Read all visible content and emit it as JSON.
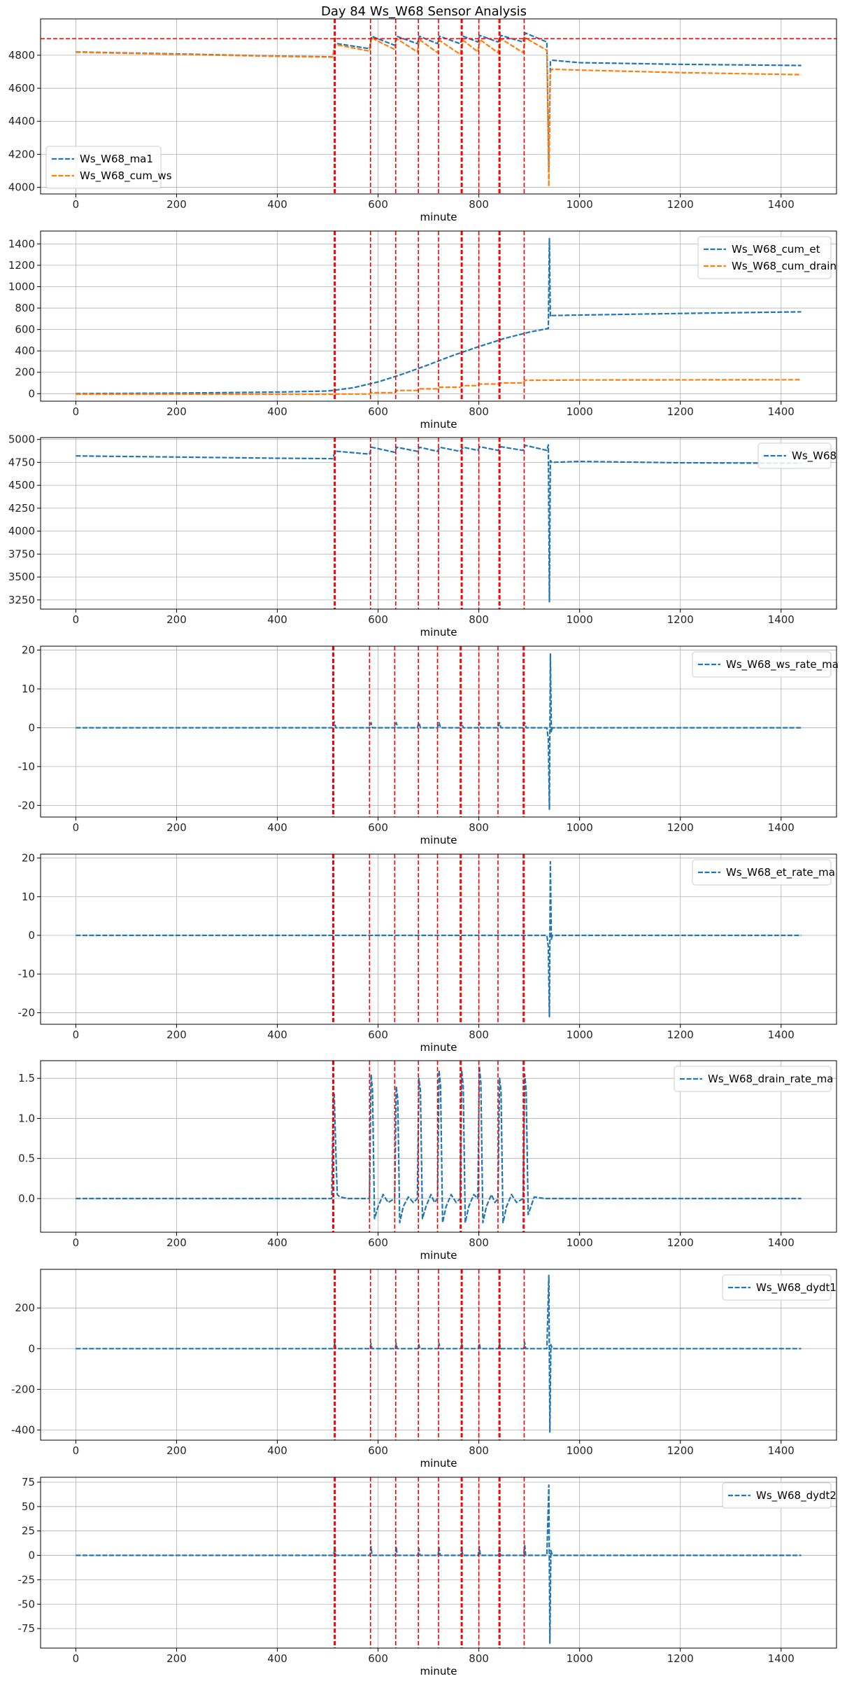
{
  "figure": {
    "title": "Day 84 Ws_W68 Sensor Analysis"
  },
  "colors": {
    "blue": "#1f77b4",
    "orange": "#ff7f0e",
    "event": "#ff0000",
    "grid": "#b0b0b0",
    "axis": "#000000"
  },
  "chart_data": [
    {
      "type": "line",
      "title": "",
      "xlabel": "minute",
      "ylabel": "",
      "xlim": [
        -70,
        1510
      ],
      "ylim": [
        3960,
        5020
      ],
      "xticks": [
        0,
        200,
        400,
        600,
        800,
        1000,
        1200,
        1400
      ],
      "yticks": [
        4000,
        4200,
        4400,
        4600,
        4800
      ],
      "ytick_labels": [
        "4000",
        "4200",
        "4400",
        "4600",
        "4800"
      ],
      "grid": true,
      "legend": "bottom-left",
      "event_lines": [
        513,
        515,
        585,
        635,
        680,
        720,
        765,
        767,
        800,
        840,
        842,
        890
      ],
      "hline": 4900,
      "series": [
        {
          "name": "Ws_W68_ma1",
          "color": "#1f77b4",
          "x": [
            0,
            200,
            400,
            510,
            515,
            583,
            587,
            633,
            637,
            678,
            682,
            718,
            722,
            763,
            769,
            798,
            802,
            838,
            844,
            888,
            892,
            935,
            939,
            942,
            945,
            1000,
            1200,
            1440
          ],
          "y": [
            4820,
            4808,
            4795,
            4790,
            4872,
            4840,
            4915,
            4860,
            4915,
            4870,
            4915,
            4870,
            4915,
            4870,
            4915,
            4880,
            4920,
            4880,
            4920,
            4880,
            4935,
            4880,
            4120,
            4760,
            4770,
            4755,
            4745,
            4738
          ]
        },
        {
          "name": "Ws_W68_cum_ws",
          "color": "#ff7f0e",
          "x": [
            0,
            200,
            400,
            510,
            515,
            583,
            587,
            633,
            637,
            678,
            682,
            718,
            722,
            763,
            769,
            798,
            802,
            838,
            844,
            888,
            892,
            935,
            939,
            942,
            945,
            1000,
            1200,
            1440
          ],
          "y": [
            4818,
            4805,
            4793,
            4788,
            4865,
            4825,
            4905,
            4835,
            4900,
            4820,
            4895,
            4815,
            4890,
            4805,
            4890,
            4820,
            4895,
            4815,
            4900,
            4815,
            4905,
            4830,
            4005,
            4700,
            4715,
            4710,
            4695,
            4682
          ]
        }
      ]
    },
    {
      "type": "line",
      "title": "",
      "xlabel": "minute",
      "ylabel": "",
      "xlim": [
        -70,
        1510
      ],
      "ylim": [
        -70,
        1520
      ],
      "xticks": [
        0,
        200,
        400,
        600,
        800,
        1000,
        1200,
        1400
      ],
      "yticks": [
        0,
        200,
        400,
        600,
        800,
        1000,
        1200,
        1400
      ],
      "ytick_labels": [
        "0",
        "200",
        "400",
        "600",
        "800",
        "1000",
        "1200",
        "1400"
      ],
      "grid": true,
      "legend": "top-right",
      "event_lines": [
        513,
        515,
        585,
        635,
        680,
        720,
        765,
        767,
        800,
        840,
        842,
        890
      ],
      "series": [
        {
          "name": "Ws_W68_cum_et",
          "color": "#1f77b4",
          "x": [
            0,
            200,
            400,
            500,
            550,
            600,
            650,
            700,
            750,
            800,
            850,
            900,
            938,
            940,
            942,
            945,
            1000,
            1200,
            1440
          ],
          "y": [
            0,
            5,
            15,
            25,
            55,
            110,
            185,
            270,
            360,
            440,
            515,
            575,
            610,
            1450,
            720,
            730,
            735,
            750,
            765
          ]
        },
        {
          "name": "Ws_W68_cum_drain",
          "color": "#ff7f0e",
          "x": [
            0,
            400,
            510,
            515,
            583,
            587,
            633,
            637,
            678,
            682,
            718,
            722,
            763,
            767,
            798,
            802,
            838,
            842,
            888,
            892,
            1000,
            1440
          ],
          "y": [
            -5,
            -5,
            -5,
            -3,
            -3,
            10,
            10,
            30,
            30,
            45,
            45,
            60,
            60,
            75,
            75,
            90,
            90,
            100,
            100,
            125,
            128,
            130
          ]
        }
      ]
    },
    {
      "type": "line",
      "title": "",
      "xlabel": "minute",
      "ylabel": "",
      "xlim": [
        -70,
        1510
      ],
      "ylim": [
        3150,
        5020
      ],
      "xticks": [
        0,
        200,
        400,
        600,
        800,
        1000,
        1200,
        1400
      ],
      "yticks": [
        3250,
        3500,
        3750,
        4000,
        4250,
        4500,
        4750,
        5000
      ],
      "ytick_labels": [
        "3250",
        "3500",
        "3750",
        "4000",
        "4250",
        "4500",
        "4750",
        "5000"
      ],
      "grid": true,
      "legend": "top-right",
      "event_lines": [
        513,
        515,
        585,
        635,
        680,
        720,
        765,
        767,
        800,
        840,
        842,
        890
      ],
      "series": [
        {
          "name": "Ws_W68",
          "color": "#1f77b4",
          "x": [
            0,
            200,
            400,
            510,
            515,
            583,
            587,
            633,
            637,
            678,
            682,
            718,
            722,
            763,
            769,
            798,
            802,
            838,
            844,
            888,
            892,
            935,
            938,
            940,
            942,
            945,
            1000,
            1200,
            1440
          ],
          "y": [
            4820,
            4808,
            4795,
            4790,
            4872,
            4840,
            4915,
            4860,
            4915,
            4870,
            4915,
            4870,
            4915,
            4870,
            4915,
            4880,
            4920,
            4880,
            4920,
            4880,
            4935,
            4880,
            4940,
            3230,
            4770,
            4750,
            4760,
            4745,
            4740
          ]
        }
      ]
    },
    {
      "type": "line",
      "title": "",
      "xlabel": "minute",
      "ylabel": "",
      "xlim": [
        -70,
        1510
      ],
      "ylim": [
        -23,
        21
      ],
      "xticks": [
        0,
        200,
        400,
        600,
        800,
        1000,
        1200,
        1400
      ],
      "yticks": [
        -20,
        -10,
        0,
        10,
        20
      ],
      "ytick_labels": [
        "-20",
        "-10",
        "0",
        "10",
        "20"
      ],
      "grid": true,
      "legend": "top-right",
      "event_lines": [
        510,
        512,
        583,
        633,
        680,
        718,
        763,
        765,
        800,
        838,
        888,
        890
      ],
      "series": [
        {
          "name": "Ws_W68_ws_rate_ma",
          "color": "#1f77b4",
          "x": [
            0,
            510,
            513,
            516,
            583,
            586,
            589,
            633,
            636,
            639,
            678,
            681,
            684,
            718,
            721,
            724,
            763,
            766,
            769,
            798,
            801,
            804,
            838,
            841,
            844,
            888,
            891,
            894,
            935,
            938,
            940,
            942,
            944,
            946,
            1000,
            1440
          ],
          "y": [
            0,
            0,
            1.5,
            0,
            0,
            1.3,
            0,
            0,
            1.3,
            0,
            0,
            1.3,
            0,
            0,
            1.3,
            0,
            0,
            1.3,
            0,
            0,
            1.3,
            0,
            0,
            1.3,
            0,
            0,
            1.3,
            0,
            0,
            -3,
            -21,
            19,
            -1,
            0,
            0,
            0
          ]
        }
      ]
    },
    {
      "type": "line",
      "title": "",
      "xlabel": "minute",
      "ylabel": "",
      "xlim": [
        -70,
        1510
      ],
      "ylim": [
        -23,
        21
      ],
      "xticks": [
        0,
        200,
        400,
        600,
        800,
        1000,
        1200,
        1400
      ],
      "yticks": [
        -20,
        -10,
        0,
        10,
        20
      ],
      "ytick_labels": [
        "-20",
        "-10",
        "0",
        "10",
        "20"
      ],
      "grid": true,
      "legend": "top-right",
      "event_lines": [
        510,
        512,
        583,
        633,
        680,
        718,
        763,
        765,
        800,
        838,
        888,
        890
      ],
      "series": [
        {
          "name": "Ws_W68_et_rate_ma",
          "color": "#1f77b4",
          "x": [
            0,
            930,
            935,
            938,
            940,
            942,
            944,
            946,
            1000,
            1440
          ],
          "y": [
            0,
            0,
            0,
            -3,
            -21,
            19,
            -1,
            0,
            0,
            0
          ]
        }
      ]
    },
    {
      "type": "line",
      "title": "",
      "xlabel": "minute",
      "ylabel": "",
      "xlim": [
        -70,
        1510
      ],
      "ylim": [
        -0.42,
        1.72
      ],
      "xticks": [
        0,
        200,
        400,
        600,
        800,
        1000,
        1200,
        1400
      ],
      "yticks": [
        0.0,
        0.5,
        1.0,
        1.5
      ],
      "ytick_labels": [
        "0.0",
        "0.5",
        "1.0",
        "1.5"
      ],
      "grid": true,
      "legend": "top-right",
      "event_lines": [
        510,
        512,
        583,
        633,
        680,
        718,
        763,
        765,
        800,
        838,
        888,
        890
      ],
      "series": [
        {
          "name": "Ws_W68_drain_rate_ma",
          "color": "#1f77b4",
          "x": [
            0,
            508,
            511,
            513,
            516,
            519,
            524,
            540,
            583,
            586,
            589,
            593,
            600,
            610,
            620,
            633,
            636,
            639,
            643,
            650,
            660,
            670,
            678,
            681,
            684,
            688,
            695,
            705,
            712,
            718,
            721,
            724,
            728,
            735,
            745,
            755,
            763,
            766,
            769,
            773,
            780,
            790,
            798,
            801,
            804,
            808,
            815,
            825,
            832,
            838,
            841,
            844,
            848,
            855,
            865,
            875,
            888,
            891,
            894,
            898,
            910,
            930,
            1440
          ],
          "y": [
            0,
            0,
            1.25,
            1.3,
            0.6,
            0.05,
            0.02,
            0,
            0,
            1.55,
            1.35,
            -0.25,
            -0.1,
            0.05,
            -0.05,
            0,
            1.4,
            1.25,
            -0.3,
            -0.1,
            0.02,
            -0.05,
            0,
            1.5,
            1.35,
            -0.25,
            -0.1,
            0.05,
            -0.05,
            0,
            1.6,
            1.4,
            -0.3,
            -0.1,
            0.05,
            -0.05,
            0,
            1.6,
            1.4,
            -0.3,
            -0.1,
            0.05,
            0,
            1.65,
            1.45,
            -0.3,
            -0.1,
            0.05,
            -0.05,
            0,
            1.5,
            1.35,
            -0.3,
            -0.1,
            0.05,
            -0.05,
            0,
            1.55,
            1.35,
            -0.2,
            0.02,
            0,
            0
          ]
        }
      ]
    },
    {
      "type": "line",
      "title": "",
      "xlabel": "minute",
      "ylabel": "",
      "xlim": [
        -70,
        1510
      ],
      "ylim": [
        -450,
        390
      ],
      "xticks": [
        0,
        200,
        400,
        600,
        800,
        1000,
        1200,
        1400
      ],
      "yticks": [
        -400,
        -200,
        0,
        200
      ],
      "ytick_labels": [
        "-400",
        "-200",
        "0",
        "200"
      ],
      "grid": true,
      "legend": "top-right",
      "event_lines": [
        513,
        515,
        585,
        635,
        680,
        720,
        765,
        767,
        800,
        840,
        842,
        890
      ],
      "series": [
        {
          "name": "Ws_W68_dydt1",
          "color": "#1f77b4",
          "x": [
            0,
            512,
            514,
            516,
            584,
            586,
            588,
            634,
            636,
            638,
            679,
            681,
            683,
            719,
            721,
            723,
            764,
            766,
            768,
            799,
            801,
            803,
            839,
            841,
            843,
            889,
            891,
            893,
            935,
            939,
            941,
            943,
            946,
            1000,
            1440
          ],
          "y": [
            0,
            0,
            30,
            0,
            0,
            25,
            0,
            0,
            25,
            0,
            0,
            20,
            0,
            0,
            25,
            0,
            0,
            25,
            0,
            0,
            25,
            0,
            0,
            25,
            0,
            0,
            30,
            0,
            0,
            360,
            -410,
            20,
            0,
            0,
            0
          ]
        }
      ]
    },
    {
      "type": "line",
      "title": "",
      "xlabel": "minute",
      "ylabel": "",
      "xlim": [
        -70,
        1510
      ],
      "ylim": [
        -95,
        80
      ],
      "xticks": [
        0,
        200,
        400,
        600,
        800,
        1000,
        1200,
        1400
      ],
      "yticks": [
        -75,
        -50,
        -25,
        0,
        25,
        50,
        75
      ],
      "ytick_labels": [
        "-75",
        "-50",
        "-25",
        "0",
        "25",
        "50",
        "75"
      ],
      "grid": true,
      "legend": "top-right",
      "event_lines": [
        513,
        515,
        585,
        635,
        680,
        720,
        765,
        767,
        800,
        840,
        842,
        890
      ],
      "series": [
        {
          "name": "Ws_W68_dydt2",
          "color": "#1f77b4",
          "x": [
            0,
            512,
            514,
            516,
            584,
            586,
            588,
            634,
            636,
            638,
            679,
            681,
            683,
            719,
            721,
            723,
            764,
            766,
            768,
            799,
            801,
            803,
            839,
            841,
            843,
            889,
            891,
            893,
            935,
            939,
            941,
            943,
            946,
            1000,
            1440
          ],
          "y": [
            0,
            0,
            8,
            0,
            0,
            9,
            0,
            0,
            9,
            0,
            0,
            7,
            0,
            0,
            8,
            0,
            0,
            8,
            0,
            0,
            9,
            0,
            0,
            9,
            0,
            0,
            10,
            0,
            0,
            72,
            -90,
            5,
            0,
            0,
            0
          ]
        }
      ]
    }
  ]
}
